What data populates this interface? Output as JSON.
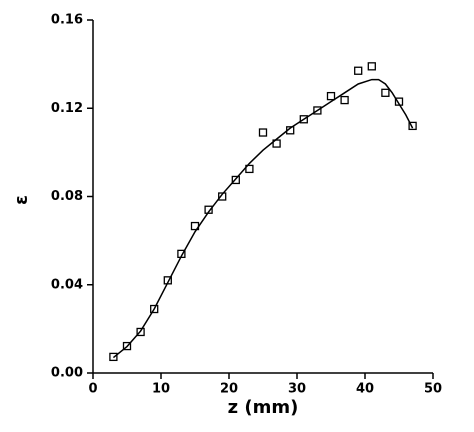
{
  "chart_data": {
    "type": "scatter",
    "x_label": "z (mm)",
    "y_label": "ε",
    "xlim": [
      0,
      50
    ],
    "xticks": [
      0,
      10,
      20,
      30,
      40,
      50
    ],
    "ylim": [
      0,
      0.16
    ],
    "yticks": [
      {
        "value": 0,
        "label": "0.00"
      },
      0.04,
      0.08,
      0.12,
      0.16
    ],
    "series": [
      {
        "type": "scatter",
        "marker": "square",
        "color": "#000000",
        "x": [
          3,
          5,
          7,
          9,
          11,
          13,
          15,
          17,
          19,
          21,
          23,
          25,
          27,
          29,
          31,
          33,
          35,
          37,
          39,
          41,
          43,
          45,
          47
        ],
        "values": [
          0.0073,
          0.0122,
          0.0186,
          0.029,
          0.042,
          0.054,
          0.0666,
          0.074,
          0.08,
          0.0875,
          0.0925,
          0.109,
          0.104,
          0.11,
          0.115,
          0.119,
          0.1255,
          0.1237,
          0.137,
          0.139,
          0.127,
          0.123,
          0.112
        ]
      },
      {
        "type": "line",
        "color": "#000000",
        "x": [
          3,
          5,
          7,
          9,
          11,
          13,
          15,
          17,
          19,
          21,
          23,
          25,
          27,
          29,
          31,
          33,
          35,
          37,
          39,
          41,
          42,
          43,
          44,
          45,
          46,
          47
        ],
        "values": [
          0.007,
          0.012,
          0.019,
          0.029,
          0.041,
          0.053,
          0.064,
          0.073,
          0.081,
          0.088,
          0.095,
          0.101,
          0.106,
          0.111,
          0.115,
          0.119,
          0.123,
          0.127,
          0.131,
          0.133,
          0.133,
          0.131,
          0.127,
          0.122,
          0.117,
          0.111
        ]
      }
    ]
  }
}
